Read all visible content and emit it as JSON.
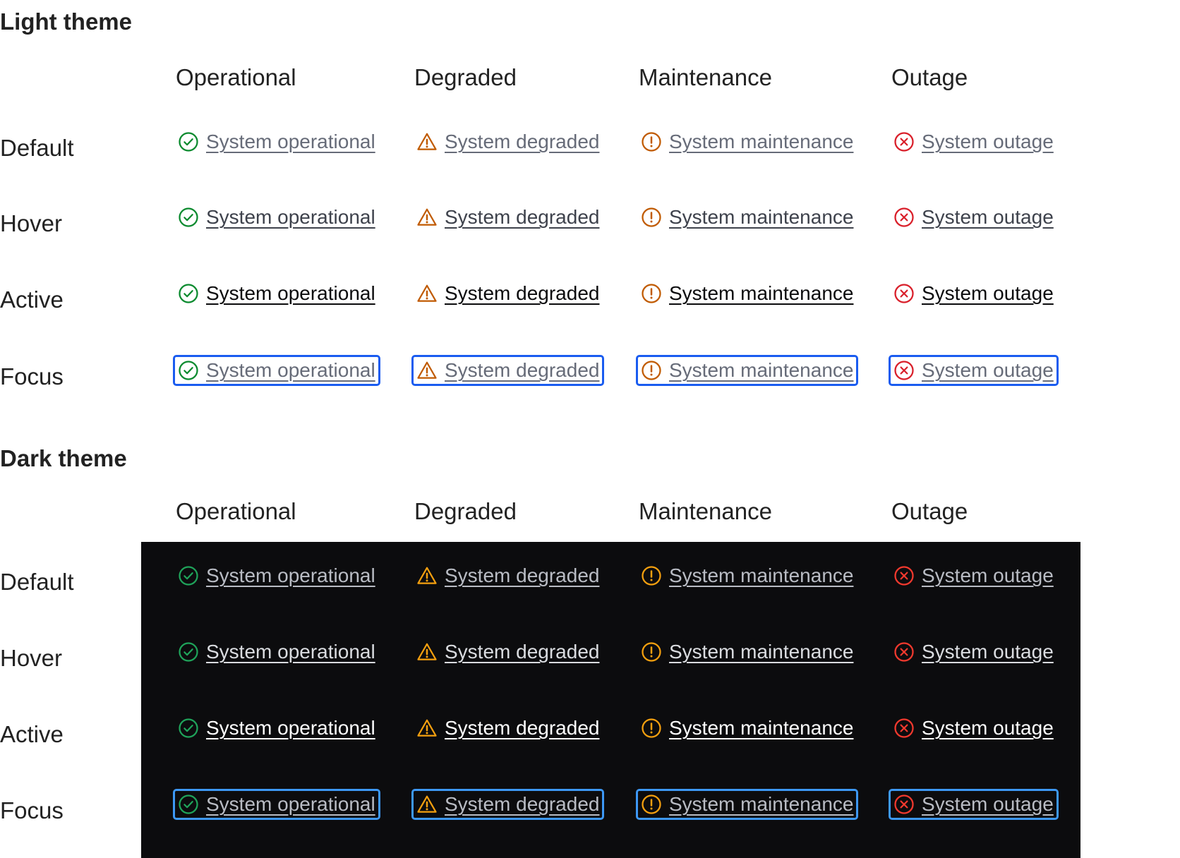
{
  "columns": [
    "Operational",
    "Degraded",
    "Maintenance",
    "Outage"
  ],
  "states": [
    "Default",
    "Hover",
    "Active",
    "Focus"
  ],
  "links": [
    {
      "label": "System operational",
      "icon": "check-circle-icon"
    },
    {
      "label": "System degraded",
      "icon": "warning-triangle-icon"
    },
    {
      "label": "System maintenance",
      "icon": "exclamation-circle-icon"
    },
    {
      "label": "System outage",
      "icon": "x-circle-icon"
    }
  ],
  "themes": [
    {
      "title": "Light theme",
      "id": "light",
      "colors": {
        "icon": [
          "#0a8a2e",
          "#c05a00",
          "#c05a00",
          "#d91f2a"
        ],
        "text": [
          "#666b78",
          "#3e424c",
          "#0b0b0d",
          "#666b78"
        ],
        "focus": "#1a5cf0"
      }
    },
    {
      "title": "Dark theme",
      "id": "dark",
      "colors": {
        "icon": [
          "#1fa35a",
          "#f5a00f",
          "#f5a00f",
          "#f2392e"
        ],
        "text": [
          "#b9bcc4",
          "#dadce0",
          "#ffffff",
          "#b9bcc4"
        ],
        "focus": "#3d98f5"
      }
    }
  ]
}
